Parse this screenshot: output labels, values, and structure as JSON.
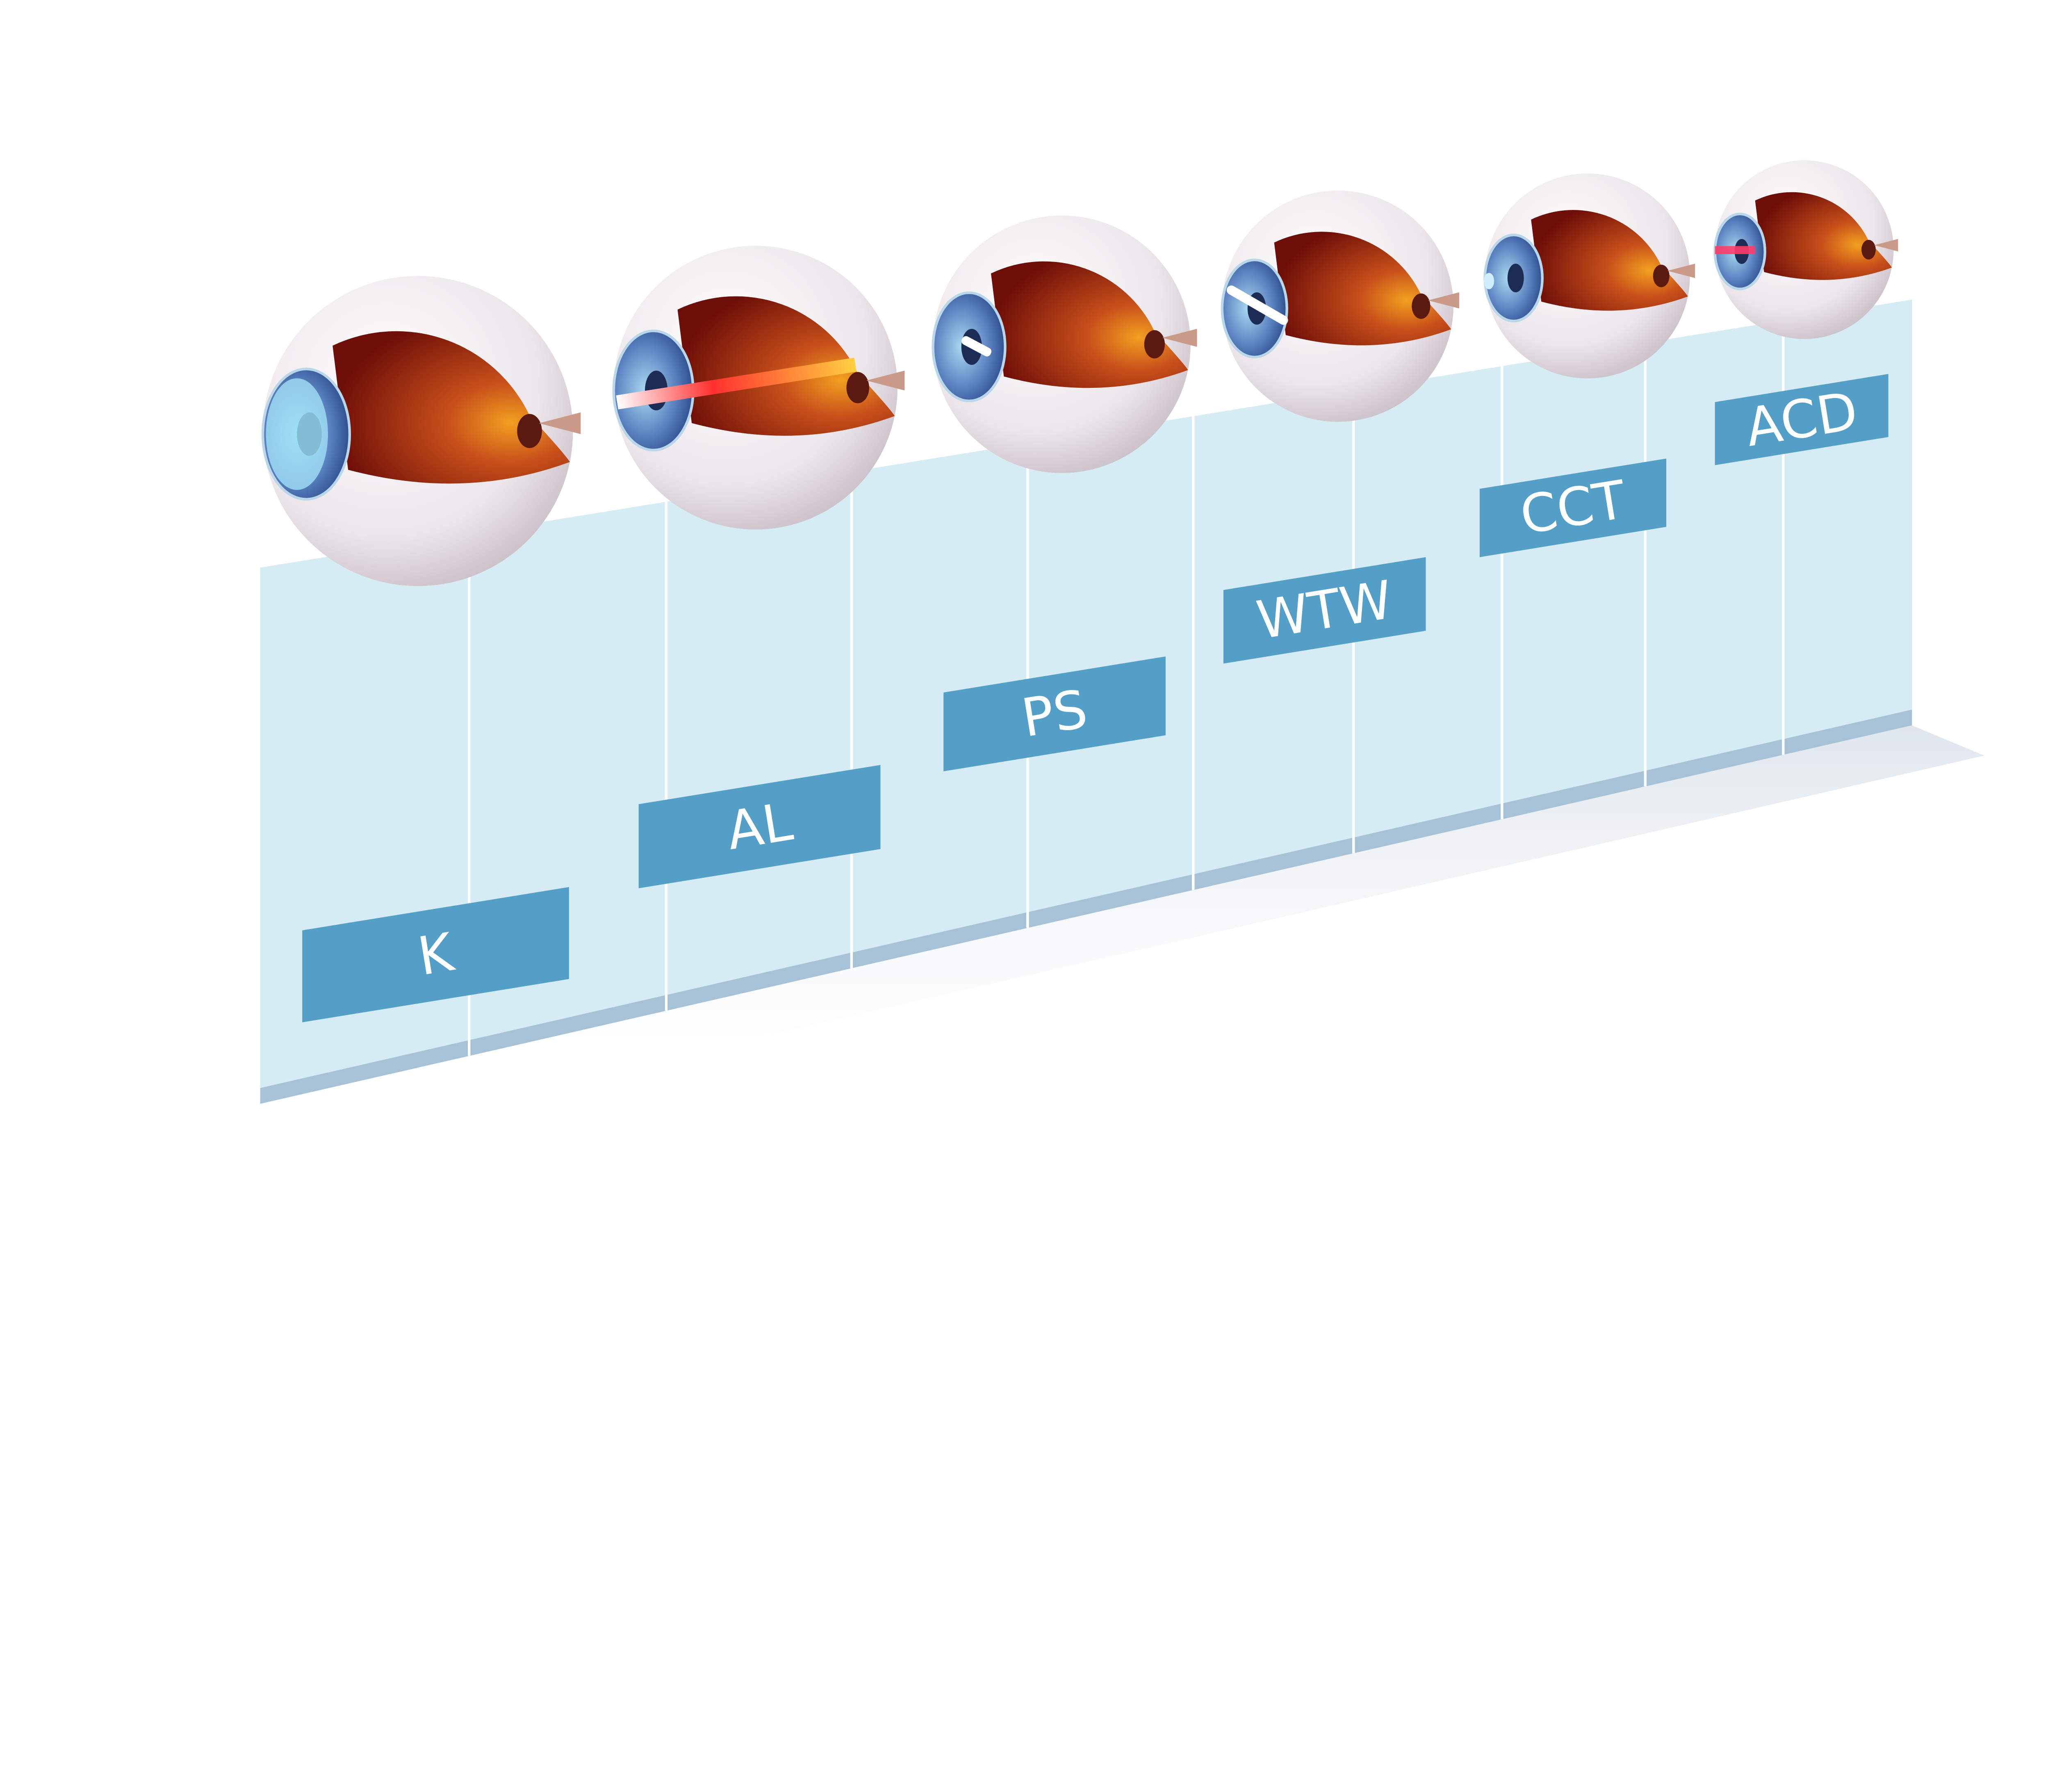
{
  "colors": {
    "panel": "#d5ecf5",
    "panel_base": "#a7c2d6",
    "label_box": "#539fc8",
    "label_text": "#ffffff",
    "divider": "#ffffff",
    "eye_white": "#eeeaec",
    "eye_interior": "#8e1a10",
    "cornea": "#5f86c3"
  },
  "labels": [
    {
      "text": "K",
      "eye_highlight": "cornea"
    },
    {
      "text": "AL",
      "eye_highlight": "axial-beam"
    },
    {
      "text": "PS",
      "eye_highlight": "pupil"
    },
    {
      "text": "WTW",
      "eye_highlight": "white-to-white-bar"
    },
    {
      "text": "CCT",
      "eye_highlight": "cornea-thickness"
    },
    {
      "text": "ACD",
      "eye_highlight": "anterior-chamber"
    }
  ]
}
